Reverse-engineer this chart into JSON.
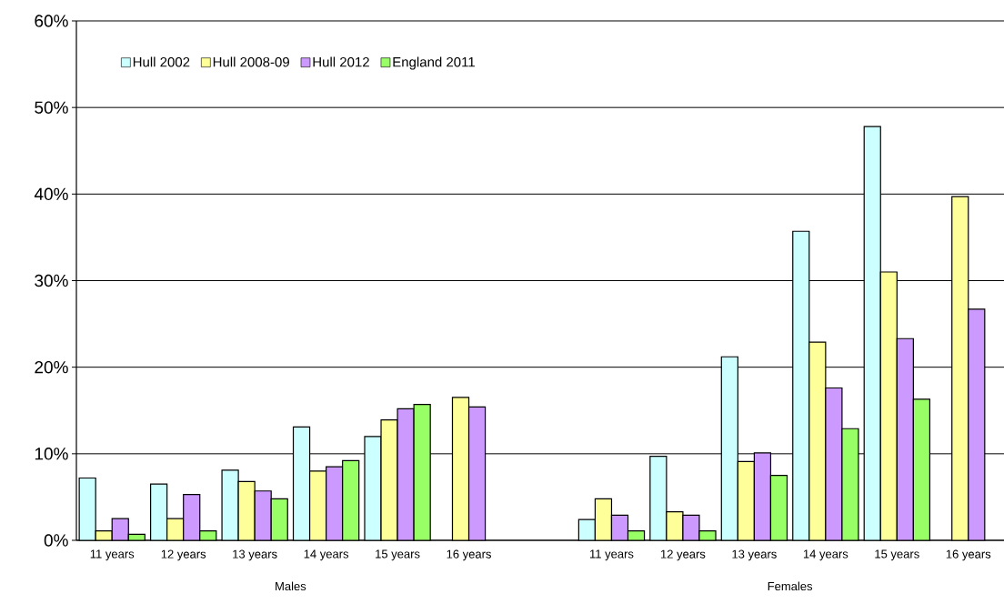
{
  "chart_data": {
    "type": "bar",
    "categories": [
      "11 years",
      "12 years",
      "13 years",
      "14 years",
      "15 years",
      "16 years",
      null,
      "11 years",
      "12 years",
      "13 years",
      "14 years",
      "15 years",
      "16 years"
    ],
    "series": [
      {
        "name": "Hull 2002",
        "color": "#ccffff",
        "values": [
          7.2,
          6.5,
          8.1,
          13.1,
          12.0,
          null,
          null,
          2.4,
          9.7,
          21.2,
          35.7,
          47.8,
          null
        ]
      },
      {
        "name": "Hull 2008-09",
        "color": "#ffff99",
        "values": [
          1.1,
          2.5,
          6.8,
          8.0,
          13.9,
          16.5,
          null,
          4.8,
          3.3,
          9.1,
          22.9,
          31.0,
          39.7
        ]
      },
      {
        "name": "Hull 2012",
        "color": "#cc99ff",
        "values": [
          2.5,
          5.3,
          5.7,
          8.5,
          15.2,
          15.4,
          null,
          2.9,
          2.9,
          10.1,
          17.6,
          23.3,
          26.7
        ]
      },
      {
        "name": "England 2011",
        "color": "#99ff66",
        "values": [
          0.7,
          1.1,
          4.8,
          9.2,
          15.7,
          null,
          null,
          1.1,
          1.1,
          7.5,
          12.9,
          16.3,
          null
        ]
      }
    ],
    "annotations": [
      "Males",
      "Females"
    ],
    "ylim": [
      0,
      60
    ],
    "yticks": [
      {
        "value": 0,
        "label": "0%"
      },
      {
        "value": 10,
        "label": "10%"
      },
      {
        "value": 20,
        "label": "20%"
      },
      {
        "value": 30,
        "label": "30%"
      },
      {
        "value": 40,
        "label": "40%"
      },
      {
        "value": 50,
        "label": "50%"
      },
      {
        "value": 60,
        "label": "60%"
      }
    ],
    "grid": "y",
    "legend": "top left"
  }
}
